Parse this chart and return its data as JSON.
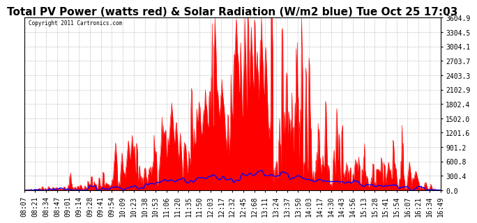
{
  "title": "Total PV Power (watts red) & Solar Radiation (W/m2 blue) Tue Oct 25 17:03",
  "copyright_text": "Copyright 2011 Cartronics.com",
  "y_max": 3604.9,
  "y_ticks": [
    0.0,
    300.4,
    600.8,
    901.2,
    1201.6,
    1502.0,
    1802.4,
    2102.9,
    2403.3,
    2703.7,
    3004.1,
    3304.5,
    3604.9
  ],
  "x_labels": [
    "08:07",
    "08:21",
    "08:34",
    "08:47",
    "09:01",
    "09:14",
    "09:28",
    "09:41",
    "09:54",
    "10:09",
    "10:23",
    "10:38",
    "10:53",
    "11:06",
    "11:20",
    "11:35",
    "11:50",
    "12:03",
    "12:17",
    "12:32",
    "12:45",
    "12:68",
    "13:11",
    "13:24",
    "13:37",
    "13:50",
    "14:03",
    "14:17",
    "14:30",
    "14:43",
    "14:56",
    "15:13",
    "15:28",
    "15:41",
    "15:54",
    "16:07",
    "16:21",
    "16:34",
    "16:49"
  ],
  "background_color": "#ffffff",
  "grid_color": "#aaaaaa",
  "red_color": "#ff0000",
  "blue_color": "#0000ff",
  "title_fontsize": 11,
  "tick_fontsize": 7,
  "red_fill_alpha": 1.0
}
